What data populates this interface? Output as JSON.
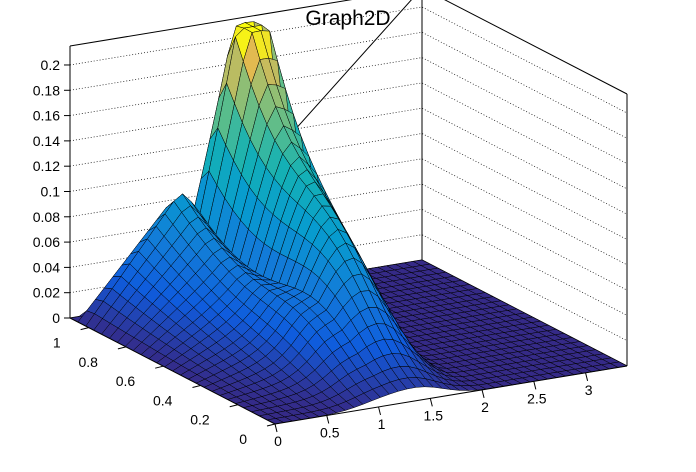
{
  "chart_data": {
    "type": "surface3d",
    "title": "Graph2D",
    "xlabel": "",
    "ylabel": "",
    "zlabel": "",
    "xlim": [
      0,
      3.4
    ],
    "ylim": [
      0,
      1.1
    ],
    "zlim": [
      0,
      0.215
    ],
    "x_ticks": [
      0,
      0.5,
      1,
      1.5,
      2,
      2.5,
      3
    ],
    "y_ticks": [
      0,
      0.2,
      0.4,
      0.6,
      0.8,
      1
    ],
    "z_ticks": [
      0,
      0.02,
      0.04,
      0.06,
      0.08,
      0.1,
      0.12,
      0.14,
      0.16,
      0.18,
      0.2
    ],
    "grid": true,
    "colormap": "viridis-like",
    "peak": {
      "x": 1.75,
      "y": 1.05,
      "z": 0.21
    },
    "secondary_ridge": {
      "x": 1.5,
      "y": 0.5,
      "z": 0.07
    },
    "colors": {
      "low": "#352a87",
      "mid": "#1fb5a8",
      "high": "#f9fb0e"
    }
  }
}
